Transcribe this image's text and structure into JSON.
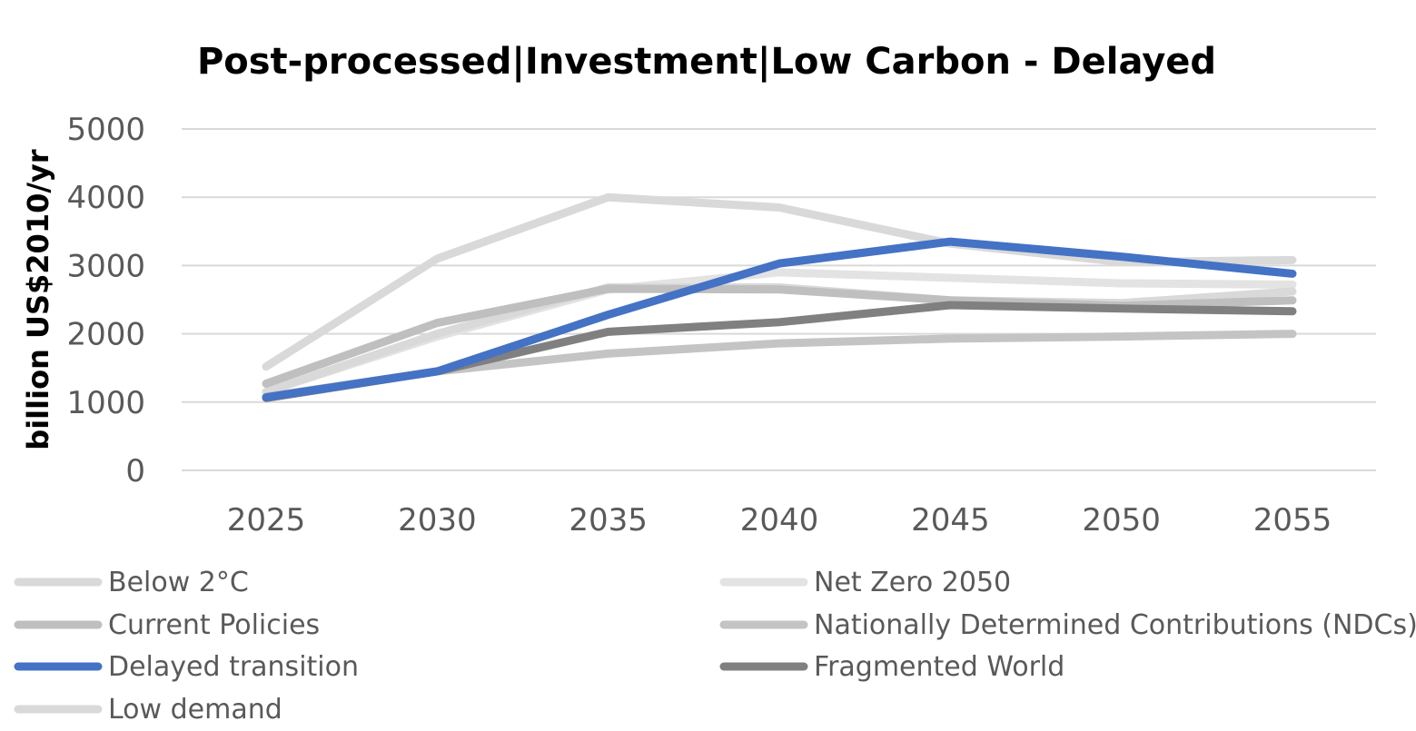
{
  "chart_data": {
    "type": "line",
    "title": "Post-processed|Investment|Low Carbon - Delayed",
    "xlabel": "",
    "ylabel": "billion US$2010/yr",
    "ylim": [
      0,
      5000
    ],
    "yticks": [
      0,
      1000,
      2000,
      3000,
      4000,
      5000
    ],
    "categories": [
      "2025",
      "2030",
      "2035",
      "2040",
      "2045",
      "2050",
      "2055"
    ],
    "grid": true,
    "legend_position": "bottom",
    "series": [
      {
        "name": "Below 2°C",
        "color": "#d9d9d9",
        "values": [
          1520,
          3100,
          4000,
          3850,
          3320,
          3050,
          3080
        ]
      },
      {
        "name": "Net Zero 2050",
        "color": "#e3e3e3",
        "values": [
          1150,
          1960,
          2650,
          2900,
          2820,
          2740,
          2720
        ]
      },
      {
        "name": "Current Policies",
        "color": "#bfbfbf",
        "values": [
          1270,
          2160,
          2660,
          2650,
          2490,
          2410,
          2490
        ]
      },
      {
        "name": "Nationally Determined Contributions (NDCs)",
        "color": "#c4c4c4",
        "values": [
          1080,
          1450,
          1710,
          1860,
          1930,
          1960,
          2000
        ]
      },
      {
        "name": "Delayed transition",
        "color": "#4472c4",
        "values": [
          1070,
          1450,
          2280,
          3030,
          3350,
          3130,
          2880
        ]
      },
      {
        "name": "Fragmented World",
        "color": "#808080",
        "values": [
          1060,
          1450,
          2030,
          2170,
          2420,
          2370,
          2330
        ]
      },
      {
        "name": "Low demand",
        "color": "#d9d9d9",
        "values": [
          1150,
          2000,
          2680,
          2680,
          2490,
          2450,
          2620
        ]
      }
    ]
  }
}
